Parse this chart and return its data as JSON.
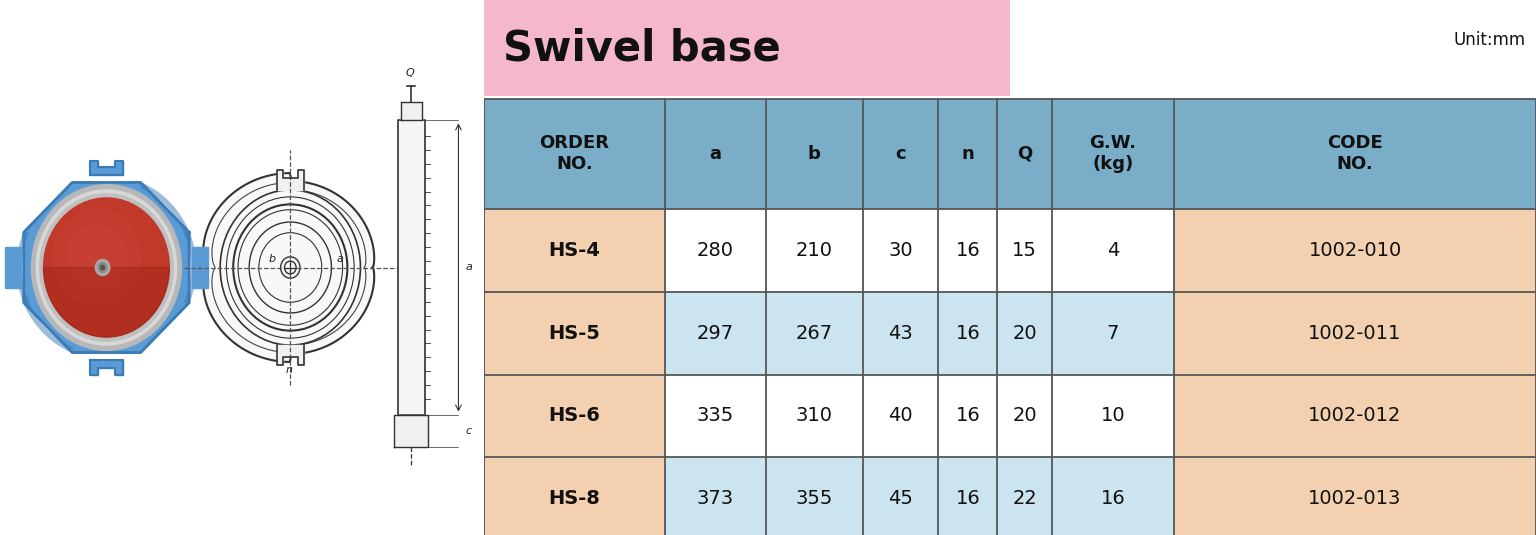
{
  "title_left": "Swivel base",
  "title_right": "Swivel base",
  "unit_text": "Unit:mm",
  "title_right_bg": "#f5b8cb",
  "header_bg": "#7aaec8",
  "header_text_color": "#1a1a1a",
  "col_headers": [
    "ORDER\nNO.",
    "a",
    "b",
    "c",
    "n",
    "Q",
    "G.W.\n(kg)",
    "CODE\nNO."
  ],
  "rows": [
    {
      "order": "HS-4",
      "a": "280",
      "b": "210",
      "c": "30",
      "n": "16",
      "Q": "15",
      "gw": "4",
      "code": "1002-010",
      "row_style": "white"
    },
    {
      "order": "HS-5",
      "a": "297",
      "b": "267",
      "c": "43",
      "n": "16",
      "Q": "20",
      "gw": "7",
      "code": "1002-011",
      "row_style": "blue"
    },
    {
      "order": "HS-6",
      "a": "335",
      "b": "310",
      "c": "40",
      "n": "16",
      "Q": "20",
      "gw": "10",
      "code": "1002-012",
      "row_style": "white"
    },
    {
      "order": "HS-8",
      "a": "373",
      "b": "355",
      "c": "45",
      "n": "16",
      "Q": "22",
      "gw": "16",
      "code": "1002-013",
      "row_style": "blue"
    }
  ],
  "color_peach": "#f2d0b0",
  "color_light_blue": "#cce4f0",
  "color_white": "#ffffff",
  "color_border": "#555555",
  "fig_bg": "#ffffff"
}
